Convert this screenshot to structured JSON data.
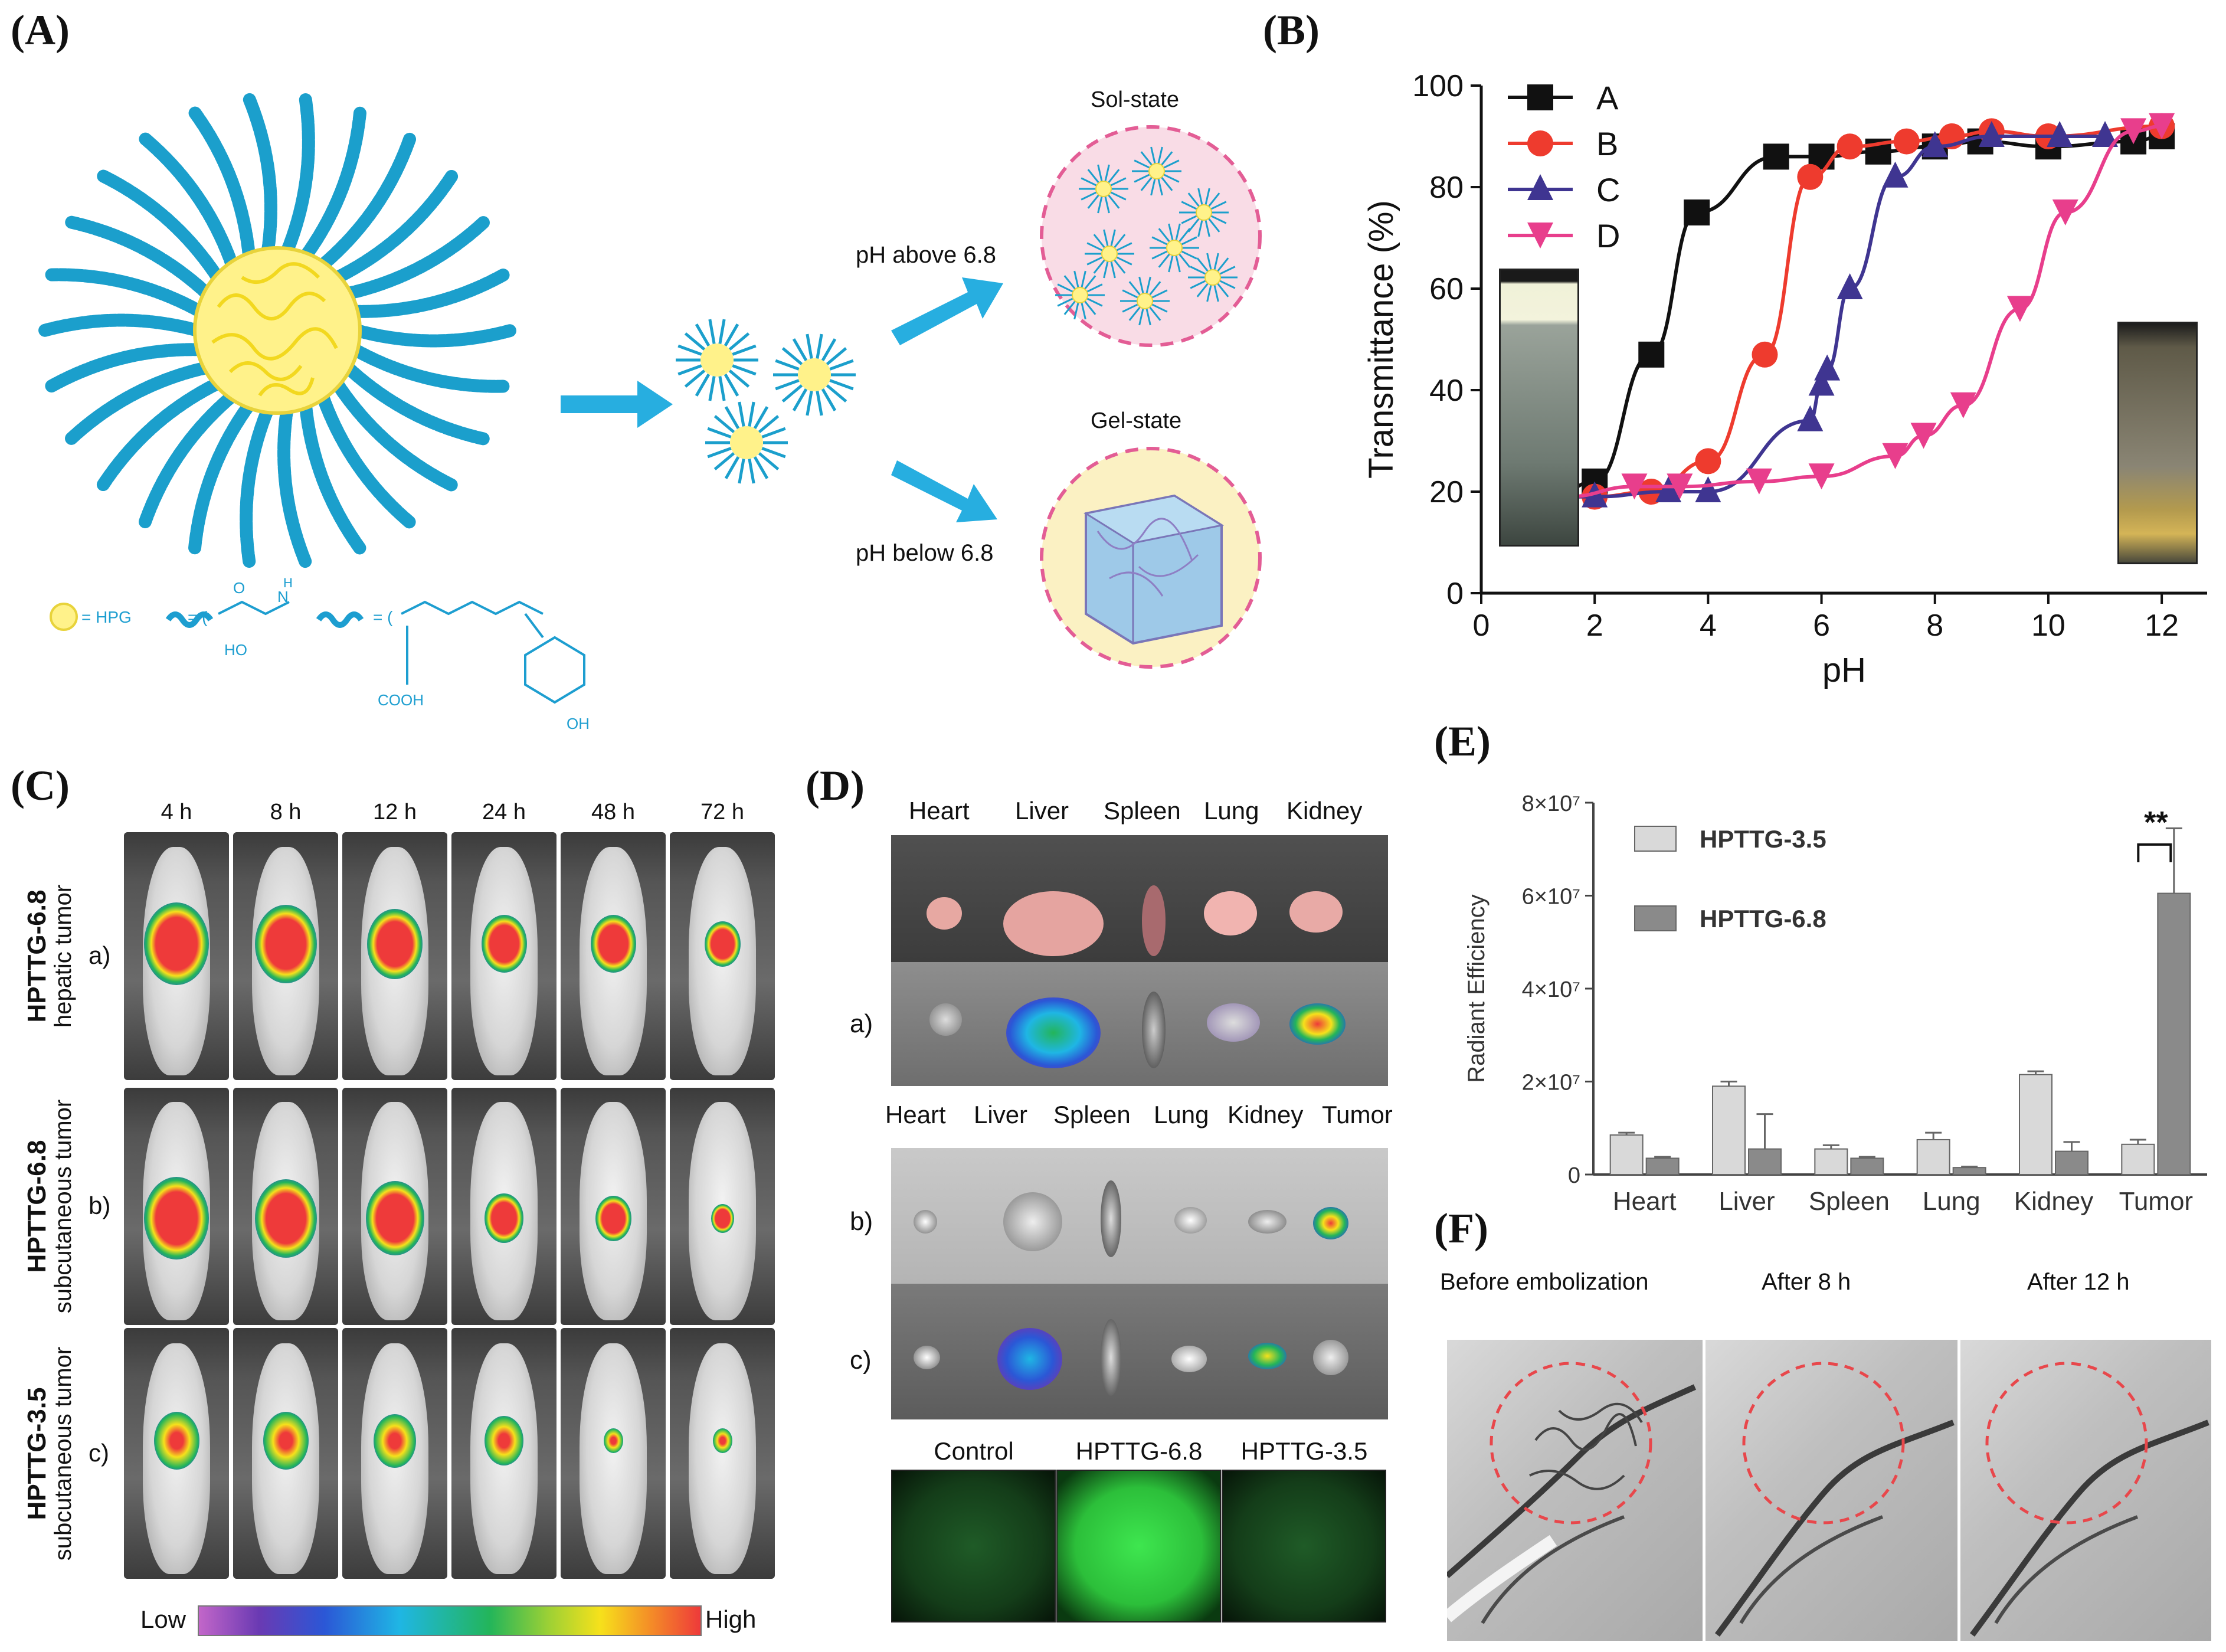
{
  "panels": {
    "A": {
      "label": "(A)",
      "sol_state": "Sol-state",
      "gel_state": "Gel-state",
      "ph_above": "pH above 6.8",
      "ph_below": "pH below 6.8",
      "legend_hpg": "= HPG"
    },
    "B": {
      "label": "(B)",
      "chart_data": {
        "type": "line",
        "xlabel": "pH",
        "ylabel": "Transmittance (%)",
        "xlim": [
          0,
          12.8
        ],
        "ylim": [
          0,
          100
        ],
        "x_ticks": [
          "0",
          "2",
          "4",
          "6",
          "8",
          "10",
          "12"
        ],
        "y_ticks": [
          "0",
          "20",
          "40",
          "60",
          "80",
          "100"
        ],
        "legend_position": "top-left",
        "series": [
          {
            "name": "A",
            "color": "#111111",
            "marker": "square",
            "x": [
              1.0,
              1.4,
              2.0,
              3.0,
              3.8,
              5.2,
              6.0,
              7.0,
              8.0,
              8.8,
              10.0,
              11.5,
              12.0
            ],
            "y": [
              19,
              20,
              22,
              47,
              75,
              86,
              86,
              87,
              88,
              89,
              88,
              89,
              90
            ]
          },
          {
            "name": "B",
            "color": "#ee3b2e",
            "marker": "circle",
            "x": [
              1.0,
              2.0,
              3.0,
              4.0,
              5.0,
              5.8,
              6.5,
              7.5,
              8.3,
              9.0,
              10.0,
              12.0
            ],
            "y": [
              19,
              19,
              20,
              26,
              47,
              82,
              88,
              89,
              90,
              91,
              90,
              92
            ]
          },
          {
            "name": "C",
            "color": "#3f3591",
            "marker": "triangle-up",
            "x": [
              1.2,
              2.0,
              3.3,
              4.0,
              5.8,
              6.0,
              6.1,
              6.5,
              7.3,
              8.0,
              9.0,
              10.2,
              11.0
            ],
            "y": [
              19,
              19,
              20,
              20,
              34,
              41,
              44,
              60,
              82,
              88,
              90,
              90,
              90
            ]
          },
          {
            "name": "D",
            "color": "#e83e8c",
            "marker": "triangle-down",
            "x": [
              1.0,
              1.5,
              2.7,
              3.5,
              4.9,
              6.0,
              7.3,
              7.8,
              8.5,
              9.5,
              10.3,
              11.5,
              12.0
            ],
            "y": [
              19,
              19,
              21,
              21,
              22,
              23,
              27,
              31,
              37,
              56,
              75,
              91,
              92
            ]
          }
        ]
      }
    },
    "C": {
      "label": "(C)",
      "timepoints": [
        "4 h",
        "8 h",
        "12 h",
        "24 h",
        "48 h",
        "72 h"
      ],
      "rows": [
        {
          "letter": "a)",
          "name": "HPTTG-6.8",
          "sub": "hepatic tumor"
        },
        {
          "letter": "b)",
          "name": "HPTTG-6.8",
          "sub": "subcutaneous tumor"
        },
        {
          "letter": "c)",
          "name": "HPTTG-3.5",
          "sub": "subcutaneous tumor"
        }
      ],
      "scale_low": "Low",
      "scale_high": "High"
    },
    "D": {
      "label": "(D)",
      "organs_top": [
        "Heart",
        "Liver",
        "Spleen",
        "Lung",
        "Kidney"
      ],
      "organs_bottom": [
        "Heart",
        "Liver",
        "Spleen",
        "Lung",
        "Kidney",
        "Tumor"
      ],
      "rows": [
        "a)",
        "b)",
        "c)"
      ],
      "groups": [
        "Control",
        "HPTTG-6.8",
        "HPTTG-3.5"
      ]
    },
    "E": {
      "label": "(E)",
      "chart_data": {
        "type": "bar",
        "ylabel": "Radiant Efficiency",
        "categories": [
          "Heart",
          "Liver",
          "Spleen",
          "Lung",
          "Kidney",
          "Tumor"
        ],
        "y_ticks": [
          "0",
          "2×10⁷",
          "4×10⁷",
          "6×10⁷",
          "8×10⁷"
        ],
        "ylim": [
          0,
          80000000
        ],
        "annotation": "**",
        "legend_position": "top-left",
        "series": [
          {
            "name": "HPTTG-3.5",
            "color": "#d9d9d9",
            "values": [
              8500000,
              19000000,
              5500000,
              7500000,
              21500000,
              6500000
            ],
            "errors": [
              500000,
              1000000,
              800000,
              1500000,
              700000,
              1000000
            ]
          },
          {
            "name": "HPTTG-6.8",
            "color": "#8a8a8a",
            "values": [
              3500000,
              5500000,
              3500000,
              1500000,
              5000000,
              60500000
            ],
            "errors": [
              300000,
              7500000,
              300000,
              200000,
              2000000,
              14000000
            ]
          }
        ]
      }
    },
    "F": {
      "label": "(F)",
      "captions": [
        "Before embolization",
        "After 8 h",
        "After 12 h"
      ]
    }
  }
}
